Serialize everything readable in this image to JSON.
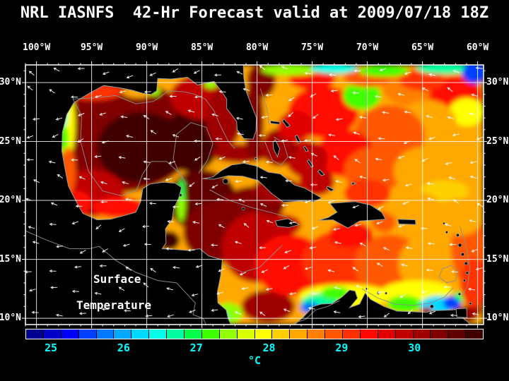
{
  "title": "NRL IASNFS  42-Hr Forecast valid at 2009/07/18 18Z",
  "map": {
    "lon_labels": [
      "100°W",
      "95°W",
      "90°W",
      "85°W",
      "80°W",
      "75°W",
      "70°W",
      "65°W",
      "60°W"
    ],
    "lat_labels": [
      "30°N",
      "25°N",
      "20°N",
      "15°N",
      "10°N"
    ],
    "overlay_line1": "Surface",
    "overlay_line2": "Temperature",
    "wind_vectors_shown": true,
    "sst_features_format": "[lon_deg_W, lat_deg_N, rx_deg, ry_deg, temp_C]",
    "sst_features": [
      [
        92.5,
        25.5,
        7.0,
        4.8,
        30.5
      ],
      [
        90.5,
        24.5,
        4.0,
        3.0,
        30.9
      ],
      [
        86.0,
        25.0,
        2.6,
        2.6,
        30.9
      ],
      [
        95.0,
        20.6,
        3.0,
        2.0,
        30.0
      ],
      [
        84.5,
        28.8,
        3.4,
        2.0,
        29.9
      ],
      [
        83.0,
        27.0,
        1.6,
        2.6,
        30.3
      ],
      [
        94.8,
        29.2,
        2.6,
        0.7,
        29.2
      ],
      [
        90.8,
        29.2,
        1.4,
        0.5,
        28.5
      ],
      [
        89.3,
        29.25,
        0.55,
        0.35,
        27.4
      ],
      [
        97.3,
        26.5,
        0.8,
        3.2,
        28.0
      ],
      [
        97.6,
        27.3,
        0.4,
        1.2,
        26.5
      ],
      [
        97.55,
        25.3,
        0.45,
        1.1,
        27.2
      ],
      [
        97.15,
        22.5,
        0.7,
        2.0,
        28.9
      ],
      [
        96.3,
        19.8,
        1.3,
        1.0,
        29.4
      ],
      [
        92.5,
        19.4,
        2.4,
        0.9,
        29.6
      ],
      [
        84.2,
        29.85,
        0.6,
        0.35,
        27.6
      ],
      [
        81.5,
        24.0,
        2.6,
        0.8,
        30.3
      ],
      [
        80.3,
        26.8,
        0.9,
        3.3,
        30.6
      ],
      [
        79.6,
        30.2,
        1.3,
        1.5,
        30.4
      ],
      [
        85.0,
        20.0,
        3.2,
        2.6,
        30.7
      ],
      [
        83.5,
        17.3,
        3.2,
        2.6,
        30.4
      ],
      [
        88.0,
        16.6,
        1.0,
        0.8,
        30.9
      ],
      [
        80.3,
        19.6,
        2.8,
        1.6,
        30.4
      ],
      [
        80.0,
        16.0,
        3.2,
        3.0,
        30.0
      ],
      [
        79.0,
        11.0,
        2.4,
        1.4,
        30.3
      ],
      [
        77.0,
        14.5,
        3.2,
        2.6,
        29.6
      ],
      [
        72.5,
        14.8,
        3.4,
        2.6,
        29.2
      ],
      [
        68.0,
        14.5,
        3.2,
        2.6,
        28.9
      ],
      [
        64.0,
        14.6,
        3.2,
        2.6,
        28.6
      ],
      [
        72.0,
        11.9,
        4.2,
        1.0,
        28.1
      ],
      [
        65.5,
        12.3,
        3.2,
        0.9,
        27.9
      ],
      [
        74.3,
        11.3,
        1.7,
        0.8,
        26.7
      ],
      [
        75.2,
        10.9,
        0.9,
        0.5,
        25.8
      ],
      [
        72.9,
        12.1,
        1.3,
        0.6,
        27.2
      ],
      [
        82.6,
        10.4,
        1.3,
        0.9,
        27.5
      ],
      [
        83.3,
        10.1,
        0.7,
        0.5,
        26.8
      ],
      [
        66.6,
        11.2,
        1.6,
        0.7,
        27.3
      ],
      [
        63.6,
        11.1,
        1.6,
        0.8,
        26.3
      ],
      [
        62.3,
        11.3,
        0.8,
        0.6,
        25.4
      ],
      [
        61.2,
        11.9,
        0.9,
        0.5,
        27.0
      ],
      [
        64.6,
        10.6,
        0.55,
        0.35,
        30.2
      ],
      [
        61.1,
        10.3,
        1.1,
        0.7,
        30.5
      ],
      [
        60.3,
        10.9,
        0.7,
        0.9,
        30.2
      ],
      [
        86.9,
        19.8,
        0.4,
        1.6,
        27.6
      ],
      [
        86.85,
        20.9,
        0.3,
        0.9,
        26.9
      ],
      [
        77.6,
        17.9,
        1.6,
        0.9,
        29.9
      ],
      [
        78.2,
        20.9,
        2.2,
        1.1,
        30.3
      ],
      [
        71.5,
        17.1,
        2.0,
        1.1,
        29.4
      ],
      [
        68.5,
        18.2,
        1.1,
        0.9,
        29.1
      ],
      [
        74.0,
        27.5,
        3.2,
        2.2,
        29.5
      ],
      [
        70.5,
        28.9,
        1.7,
        1.2,
        27.3
      ],
      [
        66.0,
        29.6,
        2.6,
        1.6,
        28.8
      ],
      [
        62.0,
        29.0,
        2.4,
        1.6,
        29.5
      ],
      [
        61.0,
        27.5,
        1.6,
        1.2,
        28.1
      ],
      [
        64.5,
        26.5,
        2.6,
        2.0,
        28.5
      ],
      [
        68.0,
        25.5,
        3.2,
        2.6,
        29.0
      ],
      [
        72.0,
        24.0,
        2.6,
        2.0,
        29.6
      ],
      [
        75.5,
        23.5,
        1.9,
        1.6,
        30.0
      ],
      [
        74.6,
        21.6,
        1.6,
        1.2,
        30.0
      ],
      [
        69.5,
        22.5,
        2.6,
        2.0,
        28.9
      ],
      [
        65.0,
        22.5,
        2.6,
        2.0,
        28.4
      ],
      [
        61.5,
        23.5,
        2.1,
        2.4,
        28.6
      ],
      [
        63.0,
        20.8,
        2.2,
        0.9,
        28.2
      ],
      [
        66.0,
        19.6,
        2.6,
        1.2,
        28.6
      ],
      [
        70.0,
        20.6,
        2.1,
        1.2,
        29.3
      ],
      [
        78.0,
        24.5,
        1.6,
        1.6,
        30.2
      ],
      [
        76.5,
        26.3,
        1.6,
        1.3,
        29.7
      ],
      [
        75.0,
        30.3,
        2.1,
        0.9,
        29.5
      ],
      [
        70.0,
        30.4,
        2.1,
        0.8,
        29.0
      ],
      [
        65.0,
        30.2,
        2.1,
        0.9,
        29.2
      ],
      [
        77.0,
        31.1,
        2.6,
        0.5,
        27.5
      ],
      [
        73.0,
        31.2,
        2.1,
        0.45,
        26.5
      ],
      [
        68.5,
        31.0,
        2.3,
        0.5,
        27.2
      ],
      [
        63.0,
        31.2,
        2.6,
        0.5,
        26.8
      ],
      [
        60.3,
        30.8,
        1.1,
        0.9,
        25.5
      ],
      [
        60.8,
        16.0,
        1.6,
        3.2,
        28.9
      ],
      [
        60.3,
        13.0,
        1.3,
        2.1,
        29.3
      ],
      [
        61.6,
        18.6,
        2.1,
        1.6,
        28.5
      ]
    ]
  },
  "colorbar": {
    "labels": [
      "25",
      "26",
      "27",
      "28",
      "29",
      "30"
    ],
    "unit": "°C",
    "scale_min_c": 24.65,
    "scale_max_c": 30.95,
    "colors": [
      "#000090",
      "#0000c8",
      "#0000ff",
      "#0040ff",
      "#0078ff",
      "#00a8ff",
      "#00d8ff",
      "#00ffe8",
      "#00ffa0",
      "#00ff48",
      "#40ff00",
      "#90ff00",
      "#d8ff00",
      "#ffff00",
      "#ffd000",
      "#ffa800",
      "#ff8000",
      "#ff5800",
      "#ff3000",
      "#ff0800",
      "#e00000",
      "#c00000",
      "#a00000",
      "#800000",
      "#600000",
      "#400000"
    ]
  },
  "colors": {
    "background": "#000000",
    "text": "#ffffff",
    "tick_label": "#00ffff",
    "grid": "#ffffff",
    "coastline": "#9a9a9a",
    "land": "#000000",
    "wind_vector": "#ffffff"
  }
}
